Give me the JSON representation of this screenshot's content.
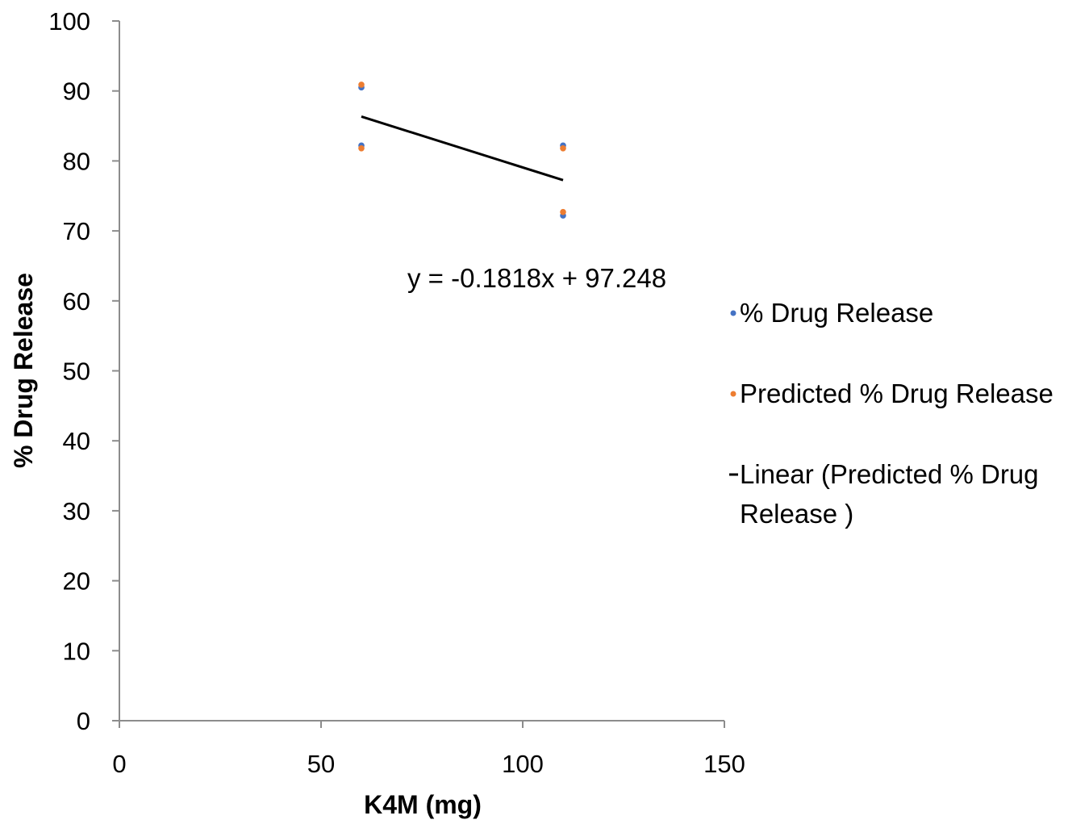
{
  "chart_data": {
    "type": "scatter",
    "title": "",
    "xlabel": "K4M (mg)",
    "ylabel": "% Drug Release",
    "xlim": [
      0,
      150
    ],
    "ylim": [
      0,
      100
    ],
    "x_ticks": [
      "0",
      "50",
      "100",
      "150"
    ],
    "y_ticks": [
      "0",
      "10",
      "20",
      "30",
      "40",
      "50",
      "60",
      "70",
      "80",
      "90",
      "100"
    ],
    "grid": false,
    "legend_position": "right",
    "series": [
      {
        "name": "% Drug Release",
        "color": "#4472C4",
        "marker": "circle",
        "points": [
          {
            "x": 60,
            "y": 90.5
          },
          {
            "x": 60,
            "y": 82.2
          },
          {
            "x": 110,
            "y": 82.2
          },
          {
            "x": 110,
            "y": 72.2
          }
        ]
      },
      {
        "name": "Predicted % Drug Release",
        "color": "#ED7D31",
        "marker": "circle",
        "points": [
          {
            "x": 60,
            "y": 90.9
          },
          {
            "x": 60,
            "y": 81.8
          },
          {
            "x": 110,
            "y": 81.8
          },
          {
            "x": 110,
            "y": 72.7
          }
        ]
      }
    ],
    "trendline": {
      "name": "Linear (Predicted % Drug Release )",
      "type": "linear",
      "color": "#000000",
      "slope": -0.1818,
      "intercept": 97.248,
      "x_start": 60,
      "x_end": 110,
      "equation": "y = -0.1818x + 97.248"
    }
  }
}
